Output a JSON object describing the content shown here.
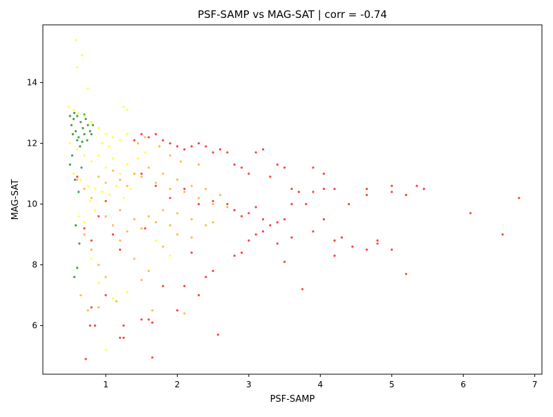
{
  "chart_data": {
    "type": "scatter",
    "title": "PSF-SAMP vs MAG-SAT | corr = -0.74",
    "xlabel": "PSF-SAMP",
    "ylabel": "MAG-SAT",
    "xlim": [
      0.12,
      7.1
    ],
    "ylim": [
      4.4,
      15.9
    ],
    "xticks": [
      1,
      2,
      3,
      4,
      5,
      6,
      7
    ],
    "yticks": [
      6,
      8,
      10,
      12,
      14
    ],
    "grid": false,
    "legend": "none",
    "colors": {
      "green": "#008000",
      "yellow": "#ffff00",
      "orange": "#ffa500",
      "red": "#ff0000"
    },
    "series": [
      {
        "color": "#008000",
        "points": [
          [
            0.5,
            12.9
          ],
          [
            0.52,
            12.6
          ],
          [
            0.55,
            12.8
          ],
          [
            0.58,
            12.4
          ],
          [
            0.6,
            12.9
          ],
          [
            0.62,
            12.2
          ],
          [
            0.65,
            12.7
          ],
          [
            0.68,
            12.5
          ],
          [
            0.7,
            12.3
          ],
          [
            0.72,
            12.8
          ],
          [
            0.75,
            12.6
          ],
          [
            0.78,
            12.4
          ],
          [
            0.56,
            13.0
          ],
          [
            0.6,
            12.1
          ],
          [
            0.64,
            11.9
          ],
          [
            0.53,
            11.6
          ],
          [
            0.5,
            11.3
          ],
          [
            0.57,
            10.8
          ],
          [
            0.62,
            10.4
          ],
          [
            0.66,
            11.2
          ],
          [
            0.74,
            12.1
          ],
          [
            0.8,
            12.3
          ],
          [
            0.82,
            12.6
          ],
          [
            0.58,
            9.3
          ],
          [
            0.63,
            8.7
          ],
          [
            0.6,
            7.9
          ],
          [
            0.56,
            7.6
          ],
          [
            0.7,
            12.95
          ],
          [
            0.54,
            12.3
          ],
          [
            0.67,
            12.05
          ]
        ]
      },
      {
        "color": "#ffff00",
        "points": [
          [
            0.48,
            13.2
          ],
          [
            0.55,
            13.1
          ],
          [
            0.62,
            13.0
          ],
          [
            0.7,
            12.9
          ],
          [
            0.8,
            12.7
          ],
          [
            0.9,
            12.5
          ],
          [
            1.0,
            12.3
          ],
          [
            1.1,
            12.2
          ],
          [
            1.2,
            12.1
          ],
          [
            1.3,
            12.3
          ],
          [
            0.5,
            12.0
          ],
          [
            0.6,
            11.8
          ],
          [
            0.7,
            11.6
          ],
          [
            0.8,
            11.4
          ],
          [
            0.9,
            11.6
          ],
          [
            1.0,
            11.2
          ],
          [
            1.1,
            11.5
          ],
          [
            1.2,
            11.0
          ],
          [
            1.3,
            11.3
          ],
          [
            1.4,
            11.0
          ],
          [
            0.55,
            11.0
          ],
          [
            0.65,
            10.8
          ],
          [
            0.75,
            10.6
          ],
          [
            0.85,
            10.5
          ],
          [
            0.95,
            10.4
          ],
          [
            1.05,
            10.3
          ],
          [
            1.15,
            10.6
          ],
          [
            1.25,
            10.2
          ],
          [
            1.35,
            10.5
          ],
          [
            0.6,
            14.5
          ],
          [
            0.58,
            15.4
          ],
          [
            0.75,
            13.8
          ],
          [
            0.67,
            14.9
          ],
          [
            1.25,
            13.2
          ],
          [
            1.3,
            13.1
          ],
          [
            0.62,
            9.6
          ],
          [
            0.7,
            9.4
          ],
          [
            0.8,
            8.2
          ],
          [
            0.9,
            7.4
          ],
          [
            1.0,
            5.2
          ],
          [
            1.1,
            6.9
          ],
          [
            1.3,
            7.1
          ],
          [
            1.7,
            8.8
          ],
          [
            1.9,
            8.3
          ],
          [
            0.95,
            12.0
          ],
          [
            1.05,
            11.9
          ],
          [
            1.45,
            11.5
          ],
          [
            1.55,
            11.7
          ],
          [
            0.85,
            9.8
          ],
          [
            0.78,
            10.1
          ]
        ]
      },
      {
        "color": "#ffa500",
        "points": [
          [
            0.6,
            10.8
          ],
          [
            0.7,
            10.5
          ],
          [
            0.8,
            10.2
          ],
          [
            0.9,
            10.9
          ],
          [
            1.0,
            10.7
          ],
          [
            1.1,
            11.1
          ],
          [
            1.2,
            10.8
          ],
          [
            1.3,
            10.6
          ],
          [
            1.4,
            11.0
          ],
          [
            1.5,
            10.9
          ],
          [
            1.6,
            11.2
          ],
          [
            1.7,
            10.7
          ],
          [
            1.8,
            11.0
          ],
          [
            1.9,
            10.5
          ],
          [
            2.0,
            10.8
          ],
          [
            2.1,
            10.4
          ],
          [
            2.2,
            10.6
          ],
          [
            2.3,
            10.2
          ],
          [
            2.4,
            10.5
          ],
          [
            2.5,
            10.0
          ],
          [
            2.6,
            10.3
          ],
          [
            2.7,
            9.9
          ],
          [
            1.0,
            9.6
          ],
          [
            1.1,
            9.3
          ],
          [
            1.2,
            9.8
          ],
          [
            1.3,
            9.1
          ],
          [
            1.4,
            9.5
          ],
          [
            1.5,
            9.2
          ],
          [
            1.6,
            9.6
          ],
          [
            1.7,
            9.4
          ],
          [
            1.8,
            9.8
          ],
          [
            1.9,
            9.3
          ],
          [
            2.0,
            9.7
          ],
          [
            2.2,
            9.5
          ],
          [
            2.4,
            9.3
          ],
          [
            0.7,
            9.0
          ],
          [
            0.8,
            8.5
          ],
          [
            0.9,
            8.0
          ],
          [
            1.0,
            7.6
          ],
          [
            1.2,
            8.8
          ],
          [
            1.4,
            8.2
          ],
          [
            1.6,
            7.8
          ],
          [
            1.8,
            8.6
          ],
          [
            2.0,
            9.0
          ],
          [
            2.2,
            8.9
          ],
          [
            2.5,
            9.4
          ],
          [
            0.65,
            7.0
          ],
          [
            0.75,
            6.5
          ],
          [
            0.9,
            6.6
          ],
          [
            1.15,
            6.8
          ],
          [
            1.5,
            7.5
          ],
          [
            2.1,
            6.4
          ],
          [
            1.65,
            6.5
          ],
          [
            1.9,
            11.6
          ],
          [
            2.05,
            11.4
          ],
          [
            2.3,
            11.3
          ],
          [
            1.45,
            12.0
          ],
          [
            1.55,
            12.2
          ],
          [
            1.75,
            11.9
          ]
        ]
      },
      {
        "color": "#ff0000",
        "points": [
          [
            0.6,
            10.9
          ],
          [
            0.7,
            9.2
          ],
          [
            0.8,
            8.8
          ],
          [
            0.9,
            9.6
          ],
          [
            1.0,
            10.1
          ],
          [
            1.1,
            9.0
          ],
          [
            1.2,
            8.5
          ],
          [
            0.72,
            4.9
          ],
          [
            0.78,
            6.0
          ],
          [
            0.85,
            6.0
          ],
          [
            0.8,
            6.6
          ],
          [
            1.0,
            7.0
          ],
          [
            1.2,
            5.6
          ],
          [
            1.25,
            5.6
          ],
          [
            1.25,
            6.0
          ],
          [
            1.5,
            6.2
          ],
          [
            1.6,
            6.2
          ],
          [
            1.65,
            6.1
          ],
          [
            1.65,
            4.95
          ],
          [
            2.0,
            6.5
          ],
          [
            2.1,
            7.3
          ],
          [
            2.3,
            7.0
          ],
          [
            2.57,
            5.7
          ],
          [
            2.5,
            7.8
          ],
          [
            1.4,
            12.1
          ],
          [
            1.5,
            12.3
          ],
          [
            1.6,
            12.2
          ],
          [
            1.7,
            12.3
          ],
          [
            1.8,
            12.1
          ],
          [
            1.9,
            12.0
          ],
          [
            2.0,
            11.9
          ],
          [
            2.1,
            11.8
          ],
          [
            2.2,
            11.9
          ],
          [
            2.3,
            12.0
          ],
          [
            2.4,
            11.9
          ],
          [
            2.5,
            11.7
          ],
          [
            2.6,
            11.8
          ],
          [
            2.7,
            11.7
          ],
          [
            2.8,
            11.3
          ],
          [
            2.9,
            11.2
          ],
          [
            3.0,
            11.0
          ],
          [
            3.1,
            11.7
          ],
          [
            3.2,
            11.8
          ],
          [
            3.3,
            10.9
          ],
          [
            3.4,
            11.3
          ],
          [
            3.5,
            11.2
          ],
          [
            3.6,
            10.5
          ],
          [
            3.9,
            11.2
          ],
          [
            4.05,
            11.0
          ],
          [
            1.5,
            11.0
          ],
          [
            1.7,
            10.6
          ],
          [
            1.9,
            10.2
          ],
          [
            2.1,
            10.5
          ],
          [
            2.3,
            10.0
          ],
          [
            2.5,
            10.1
          ],
          [
            2.7,
            10.0
          ],
          [
            2.8,
            9.8
          ],
          [
            2.9,
            9.6
          ],
          [
            3.0,
            9.7
          ],
          [
            3.1,
            9.9
          ],
          [
            3.2,
            9.5
          ],
          [
            3.3,
            9.3
          ],
          [
            3.4,
            9.4
          ],
          [
            3.5,
            9.5
          ],
          [
            3.6,
            10.0
          ],
          [
            3.7,
            10.4
          ],
          [
            3.8,
            10.0
          ],
          [
            3.9,
            10.4
          ],
          [
            4.05,
            10.5
          ],
          [
            4.2,
            10.5
          ],
          [
            4.4,
            10.0
          ],
          [
            4.65,
            10.3
          ],
          [
            4.65,
            10.5
          ],
          [
            5.0,
            10.4
          ],
          [
            5.0,
            10.6
          ],
          [
            5.2,
            10.3
          ],
          [
            5.35,
            10.6
          ],
          [
            5.45,
            10.5
          ],
          [
            3.0,
            8.8
          ],
          [
            3.1,
            9.0
          ],
          [
            3.2,
            9.1
          ],
          [
            3.4,
            8.7
          ],
          [
            3.5,
            8.1
          ],
          [
            3.6,
            8.9
          ],
          [
            3.75,
            7.2
          ],
          [
            3.9,
            9.1
          ],
          [
            4.05,
            9.5
          ],
          [
            4.2,
            8.3
          ],
          [
            4.2,
            8.8
          ],
          [
            4.3,
            8.9
          ],
          [
            4.45,
            8.6
          ],
          [
            4.65,
            8.5
          ],
          [
            4.8,
            8.7
          ],
          [
            4.8,
            8.8
          ],
          [
            5.0,
            8.5
          ],
          [
            5.2,
            7.7
          ],
          [
            6.1,
            9.7
          ],
          [
            6.55,
            9.0
          ],
          [
            6.78,
            10.2
          ],
          [
            2.8,
            8.3
          ],
          [
            2.9,
            8.4
          ],
          [
            2.2,
            8.4
          ],
          [
            2.4,
            7.6
          ],
          [
            1.8,
            7.3
          ],
          [
            1.55,
            9.2
          ]
        ]
      }
    ]
  }
}
